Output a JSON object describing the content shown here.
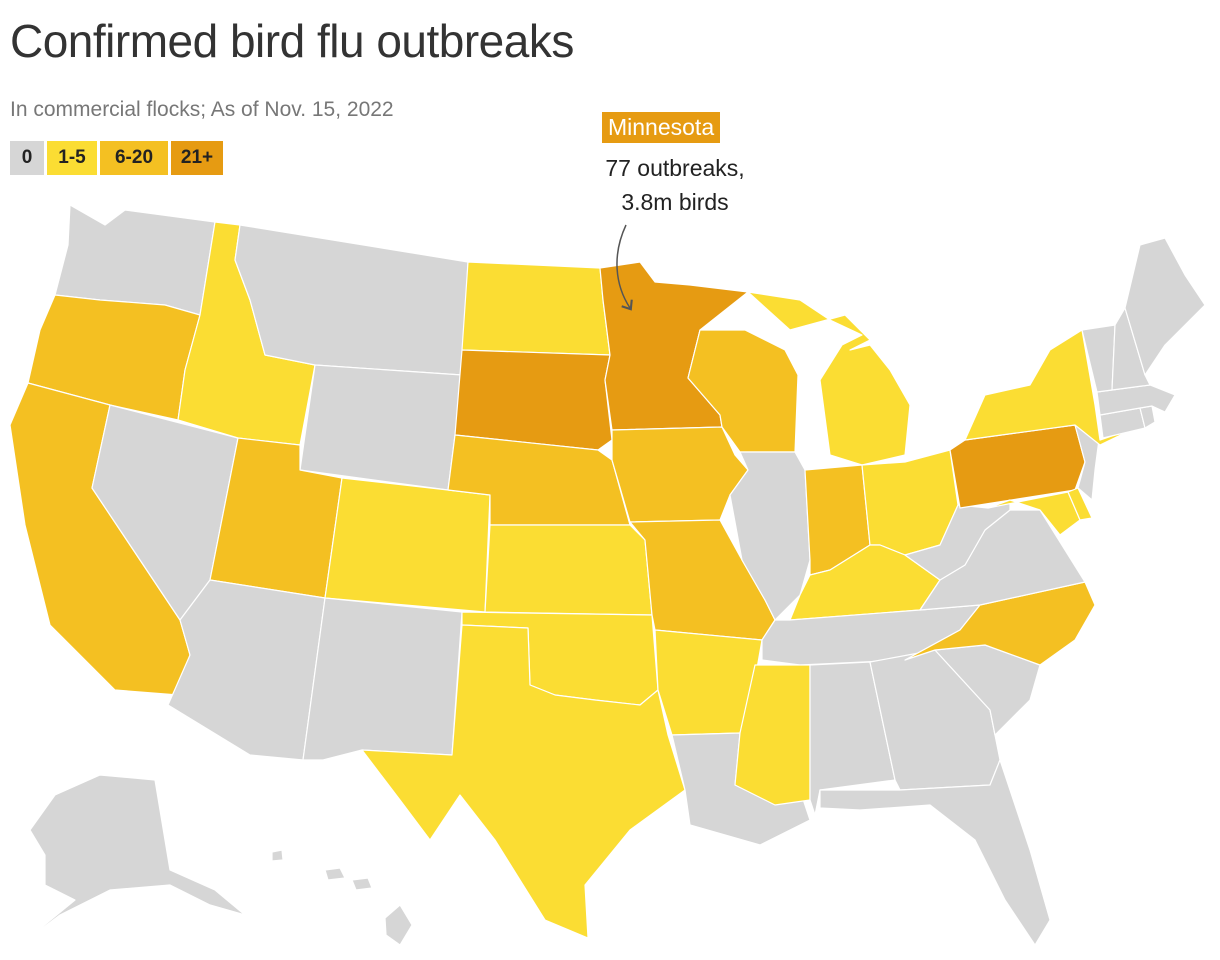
{
  "title": "Confirmed bird flu outbreaks",
  "subtitle": "In commercial flocks; As of Nov. 15, 2022",
  "legend": [
    {
      "label": "0",
      "color": "#d6d6d6"
    },
    {
      "label": "1-5",
      "color": "#fbdd33"
    },
    {
      "label": "6-20",
      "color": "#f4c022"
    },
    {
      "label": "21+",
      "color": "#e69b12"
    }
  ],
  "annotation": {
    "state": "Minnesota",
    "line1": "77 outbreaks,",
    "line2": "3.8m birds"
  },
  "map_data": {
    "states": [
      {
        "id": "WA",
        "category": "0"
      },
      {
        "id": "OR",
        "category": "6-20"
      },
      {
        "id": "CA",
        "category": "6-20"
      },
      {
        "id": "ID",
        "category": "1-5"
      },
      {
        "id": "NV",
        "category": "0"
      },
      {
        "id": "UT",
        "category": "6-20"
      },
      {
        "id": "AZ",
        "category": "0"
      },
      {
        "id": "MT",
        "category": "0"
      },
      {
        "id": "WY",
        "category": "0"
      },
      {
        "id": "CO",
        "category": "1-5"
      },
      {
        "id": "NM",
        "category": "0"
      },
      {
        "id": "ND",
        "category": "1-5"
      },
      {
        "id": "SD",
        "category": "21+"
      },
      {
        "id": "NE",
        "category": "6-20"
      },
      {
        "id": "KS",
        "category": "1-5"
      },
      {
        "id": "OK",
        "category": "1-5"
      },
      {
        "id": "TX",
        "category": "1-5"
      },
      {
        "id": "MN",
        "category": "21+"
      },
      {
        "id": "IA",
        "category": "6-20"
      },
      {
        "id": "MO",
        "category": "6-20"
      },
      {
        "id": "AR",
        "category": "1-5"
      },
      {
        "id": "LA",
        "category": "0"
      },
      {
        "id": "WI",
        "category": "6-20"
      },
      {
        "id": "IL",
        "category": "0"
      },
      {
        "id": "MI",
        "category": "1-5"
      },
      {
        "id": "IN",
        "category": "6-20"
      },
      {
        "id": "OH",
        "category": "1-5"
      },
      {
        "id": "KY",
        "category": "1-5"
      },
      {
        "id": "TN",
        "category": "0"
      },
      {
        "id": "MS",
        "category": "1-5"
      },
      {
        "id": "AL",
        "category": "0"
      },
      {
        "id": "GA",
        "category": "0"
      },
      {
        "id": "FL",
        "category": "0"
      },
      {
        "id": "SC",
        "category": "0"
      },
      {
        "id": "NC",
        "category": "6-20"
      },
      {
        "id": "VA",
        "category": "0"
      },
      {
        "id": "WV",
        "category": "0"
      },
      {
        "id": "PA",
        "category": "21+"
      },
      {
        "id": "NY",
        "category": "1-5"
      },
      {
        "id": "MD",
        "category": "1-5"
      },
      {
        "id": "DE",
        "category": "1-5"
      },
      {
        "id": "NJ",
        "category": "0"
      },
      {
        "id": "CT",
        "category": "0"
      },
      {
        "id": "RI",
        "category": "0"
      },
      {
        "id": "MA",
        "category": "0"
      },
      {
        "id": "VT",
        "category": "0"
      },
      {
        "id": "NH",
        "category": "0"
      },
      {
        "id": "ME",
        "category": "0"
      },
      {
        "id": "AK",
        "category": "0"
      },
      {
        "id": "HI",
        "category": "0"
      }
    ]
  }
}
